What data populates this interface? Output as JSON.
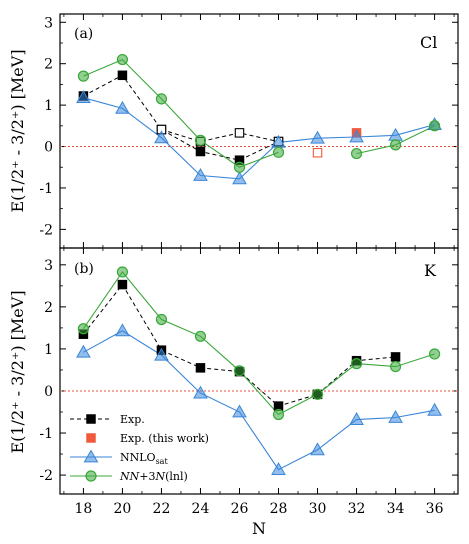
{
  "colors": {
    "exp": "#000000",
    "exp_this_work": "#ef5a3c",
    "nnlo": "#3a86d8",
    "nn3n": "#3aa83a",
    "zero_line": "#e0503a"
  },
  "figure": {
    "ylabel": "E(1/2⁺ - 3/2⁺) [MeV]",
    "xlabel": "N"
  },
  "chart_data": [
    {
      "type": "line",
      "panel_label": "(a)",
      "element": "Cl",
      "x_ticks": [
        18,
        20,
        22,
        24,
        26,
        28,
        30,
        32,
        34,
        36
      ],
      "xlim": [
        16.8,
        37.2
      ],
      "ylim": [
        -2.45,
        3.2
      ],
      "y_ticks": [
        -2,
        -1,
        0,
        1,
        2,
        3
      ],
      "zero_line": true,
      "series": [
        {
          "name": "Exp.",
          "key": "exp",
          "marker": "square-filled",
          "line": "dashed",
          "x": [
            18,
            20,
            22,
            24,
            26,
            28
          ],
          "y": [
            1.22,
            1.72,
            0.41,
            -0.12,
            -0.33,
            0.12
          ]
        },
        {
          "name": "",
          "key": "exp_alt",
          "marker": "square-open",
          "line": "dashed",
          "x": [
            22,
            24,
            26,
            28
          ],
          "y": [
            0.41,
            0.12,
            0.33,
            0.12
          ]
        },
        {
          "name": "Exp. (this work)",
          "key": "exp_this_work",
          "marker": "square-mixed",
          "line": "none",
          "x": [
            30,
            32
          ],
          "y": [
            -0.15,
            0.33
          ],
          "filled": [
            false,
            true
          ]
        },
        {
          "name": "NNLOsat",
          "key": "nnlo",
          "marker": "triangle",
          "line": "solid",
          "x": [
            18,
            20,
            22,
            24,
            26,
            28,
            30,
            32,
            34,
            36
          ],
          "y": [
            1.18,
            0.92,
            0.21,
            -0.7,
            -0.78,
            0.1,
            0.2,
            0.23,
            0.27,
            0.53
          ]
        },
        {
          "name": "NN+3N(lnl)",
          "key": "nn3n",
          "marker": "circle",
          "line": "solid",
          "x": [
            18,
            20,
            22,
            24,
            26,
            28,
            30,
            32,
            34,
            36
          ],
          "y": [
            1.7,
            2.1,
            1.15,
            0.15,
            -0.5,
            -0.14,
            null,
            -0.17,
            0.04,
            0.5
          ]
        }
      ]
    },
    {
      "type": "line",
      "panel_label": "(b)",
      "element": "K",
      "x_ticks": [
        18,
        20,
        22,
        24,
        26,
        28,
        30,
        32,
        34,
        36
      ],
      "xlim": [
        16.8,
        37.2
      ],
      "ylim": [
        -2.45,
        3.4
      ],
      "y_ticks": [
        -2,
        -1,
        0,
        1,
        2,
        3
      ],
      "zero_line": true,
      "series": [
        {
          "name": "Exp.",
          "key": "exp",
          "marker": "square-filled",
          "line": "dashed",
          "x": [
            18,
            20,
            22,
            24,
            26,
            28,
            30,
            32,
            34
          ],
          "y": [
            1.35,
            2.53,
            0.97,
            0.55,
            0.46,
            -0.36,
            -0.08,
            0.72,
            0.81
          ]
        },
        {
          "name": "NNLOsat",
          "key": "nnlo",
          "marker": "triangle",
          "line": "solid",
          "x": [
            18,
            20,
            22,
            24,
            26,
            28,
            30,
            32,
            34,
            36
          ],
          "y": [
            0.92,
            1.43,
            0.85,
            -0.05,
            -0.5,
            -1.87,
            -1.4,
            -0.68,
            -0.63,
            -0.46
          ]
        },
        {
          "name": "NN+3N(lnl)",
          "key": "nn3n",
          "marker": "circle",
          "line": "solid",
          "x": [
            18,
            20,
            22,
            24,
            26,
            28,
            30,
            32,
            34,
            36
          ],
          "y": [
            1.48,
            2.83,
            1.7,
            1.3,
            0.48,
            -0.56,
            -0.08,
            0.65,
            0.58,
            0.88
          ]
        }
      ]
    }
  ],
  "legend": {
    "placement": "bottom-left of panel (b)",
    "entries": [
      {
        "key": "exp",
        "label": "Exp."
      },
      {
        "key": "exp_this_work",
        "label": "Exp. (this work)"
      },
      {
        "key": "nnlo",
        "label": "NNLO",
        "label_sub": "sat"
      },
      {
        "key": "nn3n",
        "label_parts": [
          "NN",
          "+3",
          "N",
          "(lnl)"
        ]
      }
    ]
  }
}
